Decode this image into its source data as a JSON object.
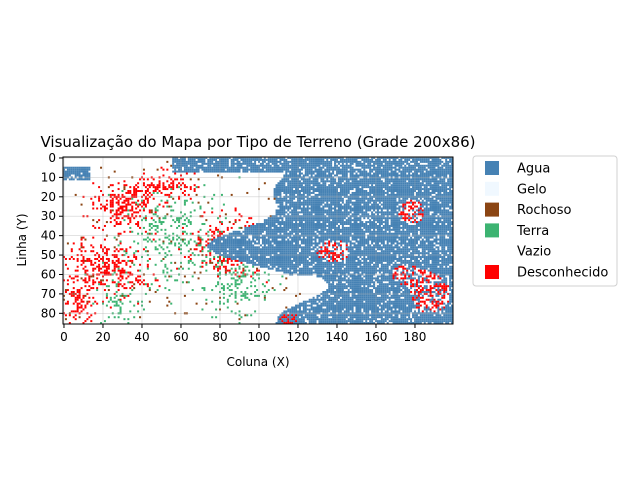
{
  "chart_data": {
    "type": "heatmap",
    "title": "Visualização do Mapa por Tipo de Terreno (Grade 200x86)",
    "xlabel": "Coluna (X)",
    "ylabel": "Linha (Y)",
    "grid_size": {
      "cols": 200,
      "rows": 86
    },
    "xlim": [
      0,
      199
    ],
    "ylim": [
      86,
      0
    ],
    "x_ticks": [
      "0",
      "20",
      "40",
      "60",
      "80",
      "100",
      "120",
      "140",
      "160",
      "180"
    ],
    "y_ticks": [
      "0",
      "10",
      "20",
      "30",
      "40",
      "50",
      "60",
      "70",
      "80"
    ],
    "grid": true,
    "legend_position": "outside-right",
    "categories": [
      {
        "name": "Agua",
        "color": "#4682b4"
      },
      {
        "name": "Gelo",
        "color": "#f0f8ff"
      },
      {
        "name": "Rochoso",
        "color": "#8b4513"
      },
      {
        "name": "Terra",
        "color": "#3cb371"
      },
      {
        "name": "Vazio",
        "color": "#ffffff"
      },
      {
        "name": "Desconhecido",
        "color": "#ff0000"
      }
    ]
  }
}
